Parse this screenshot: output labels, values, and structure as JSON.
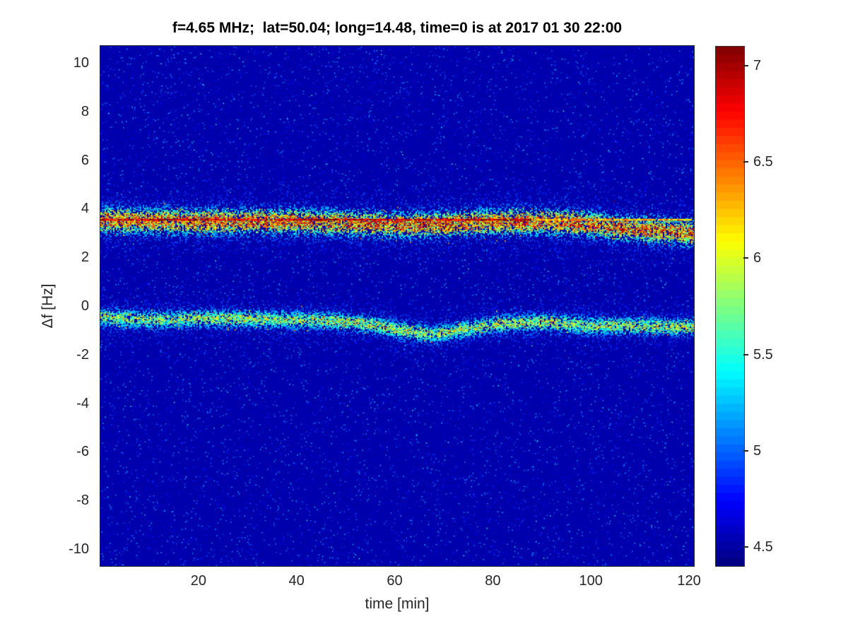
{
  "figure": {
    "kind": "matlab-style spectrogram figure"
  },
  "colors": {
    "figure_background": "#ffffff",
    "axis_text": "#262626",
    "title_text": "#000000",
    "heatmap_background": "#1515a0",
    "colormap_low": "#00008f",
    "colormap_high": "#800000"
  },
  "chart_data": {
    "type": "heatmap",
    "title": "f=4.65 MHz;  lat=50.04; long=14.48, time=0 is at 2017 01 30 22:00",
    "xlabel": "time [min]",
    "ylabel": "Δf [Hz]",
    "xlim": [
      0,
      121
    ],
    "ylim": [
      -10.7,
      10.7
    ],
    "xticks": [
      20,
      40,
      60,
      80,
      100,
      120
    ],
    "yticks": [
      10,
      8,
      6,
      4,
      2,
      0,
      -2,
      -4,
      -6,
      -8,
      -10
    ],
    "grid": false,
    "legend": "none",
    "colormap": "jet",
    "colorbar": {
      "position": "right",
      "range": [
        4.4,
        7.1
      ],
      "ticks": [
        7,
        6.5,
        6,
        5.5,
        5,
        4.5
      ],
      "steps": 64
    },
    "background_value": 4.52,
    "noise": {
      "speckle_count": 30000,
      "speckle_base": 4.45,
      "speckle_span": 0.8,
      "bright_speckle_count": 260,
      "bright_speckle_min": 5.1,
      "bright_speckle_span": 0.5
    },
    "series": [
      {
        "name": "carrier-reference-line",
        "type": "dashed-line",
        "freq": 3.55,
        "value_segments": [
          {
            "t": [
              0,
              88
            ],
            "level": 6.9
          },
          {
            "t": [
              88,
              121
            ],
            "level": 6.3
          }
        ],
        "gap_fraction": 0.1,
        "jitter": 0.5
      },
      {
        "name": "upper-doppler-trace",
        "type": "noise-band",
        "path": [
          [
            0,
            3.55
          ],
          [
            20,
            3.5
          ],
          [
            40,
            3.5
          ],
          [
            55,
            3.4
          ],
          [
            65,
            3.35
          ],
          [
            75,
            3.45
          ],
          [
            85,
            3.5
          ],
          [
            95,
            3.45
          ],
          [
            105,
            3.25
          ],
          [
            112,
            3.15
          ],
          [
            118,
            3.05
          ],
          [
            121,
            3.0
          ]
        ],
        "sigma": 0.28,
        "edge_value": 4.85,
        "peak_value": 6.5,
        "density": 32,
        "red_fraction": 0.05,
        "warm_fraction": 0.1
      },
      {
        "name": "lower-doppler-trace",
        "type": "noise-band",
        "path": [
          [
            0,
            -0.45
          ],
          [
            10,
            -0.55
          ],
          [
            20,
            -0.5
          ],
          [
            30,
            -0.5
          ],
          [
            40,
            -0.55
          ],
          [
            48,
            -0.6
          ],
          [
            55,
            -0.75
          ],
          [
            62,
            -1.0
          ],
          [
            68,
            -1.15
          ],
          [
            75,
            -0.9
          ],
          [
            82,
            -0.7
          ],
          [
            90,
            -0.65
          ],
          [
            100,
            -0.8
          ],
          [
            110,
            -0.8
          ],
          [
            118,
            -0.85
          ],
          [
            121,
            -0.8
          ]
        ],
        "sigma": 0.2,
        "edge_value": 4.85,
        "peak_value": 5.85,
        "density": 22,
        "red_fraction": 0.006,
        "warm_fraction": 0.06
      }
    ]
  }
}
